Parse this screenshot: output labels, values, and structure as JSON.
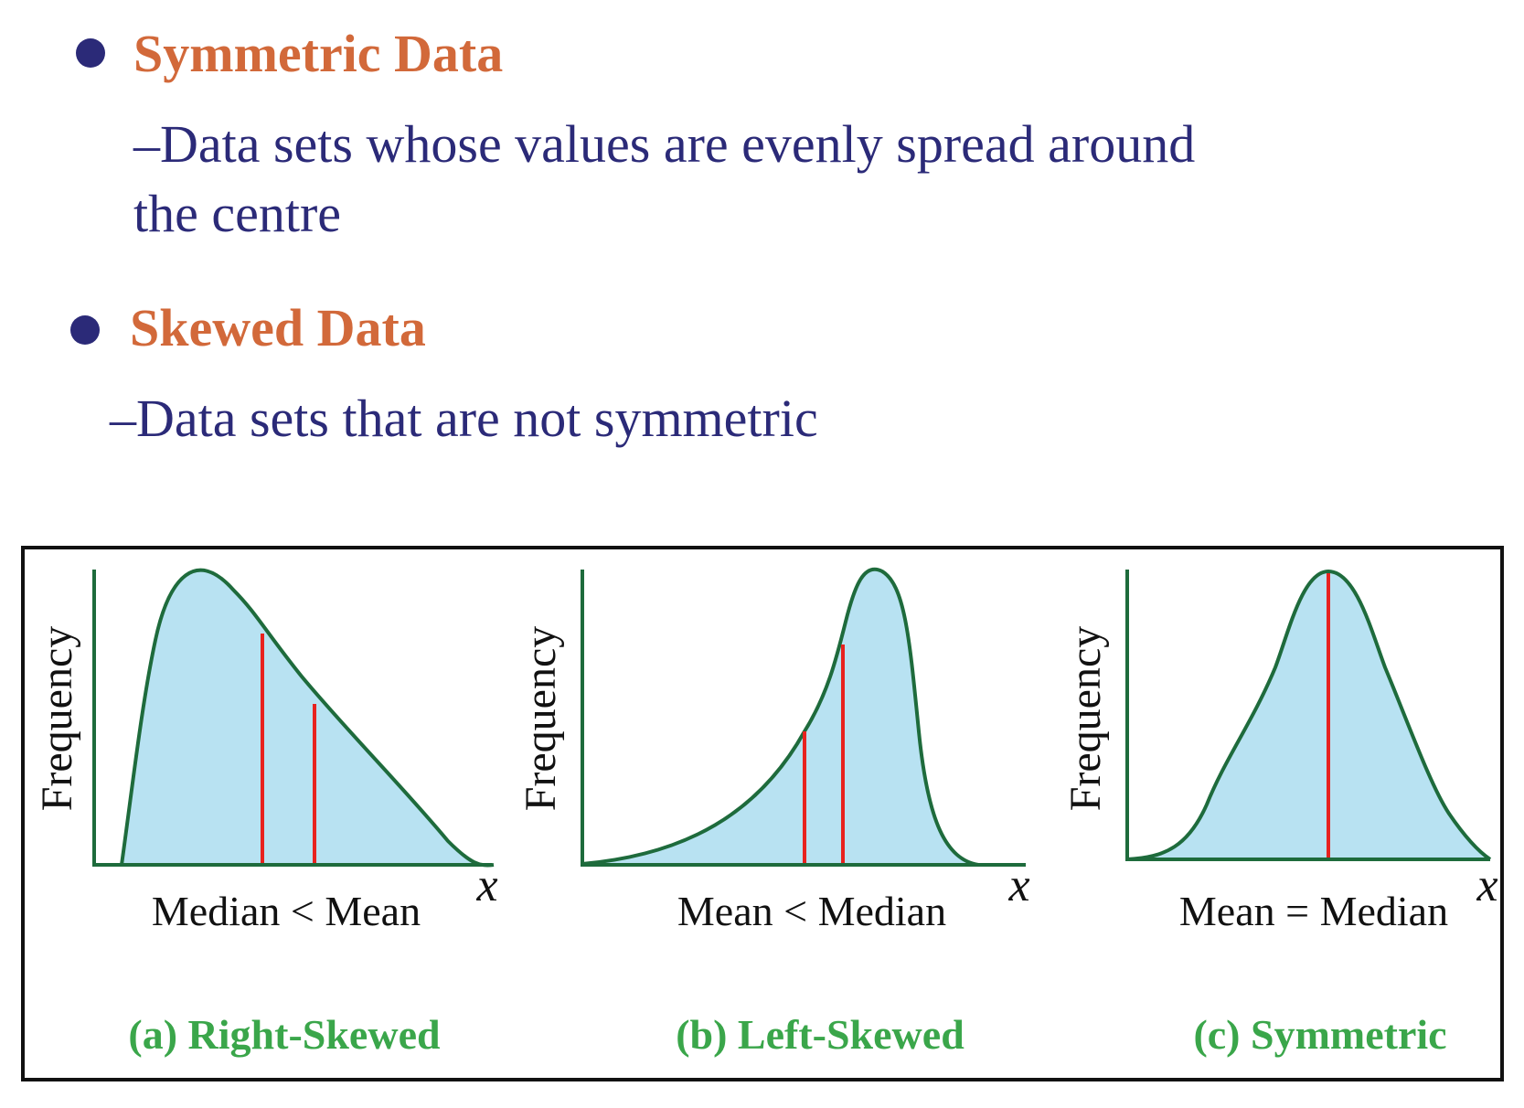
{
  "bullets": [
    {
      "heading": "Symmetric Data",
      "lines": [
        "–Data sets whose values are evenly spread around",
        "the centre"
      ]
    },
    {
      "heading": "Skewed Data",
      "lines": [
        "–Data sets that are not symmetric"
      ]
    }
  ],
  "panels": [
    {
      "ylabel": "Frequency",
      "xlabel": "x",
      "relation": "Median < Mean",
      "caption": "(a) Right-Skewed"
    },
    {
      "ylabel": "Frequency",
      "xlabel": "x",
      "relation": "Mean < Median",
      "caption": "(b) Left-Skewed"
    },
    {
      "ylabel": "Frequency",
      "xlabel": "x",
      "relation": "Mean = Median",
      "caption": "(c) Symmetric"
    }
  ],
  "colors": {
    "heading": "#d2693a",
    "body_text": "#2b2a78",
    "curve": "#1e6b3c",
    "fill": "#b8e2f2",
    "marker": "#e8221f",
    "caption": "#3aa64a",
    "axis": "#1e6b3c"
  }
}
